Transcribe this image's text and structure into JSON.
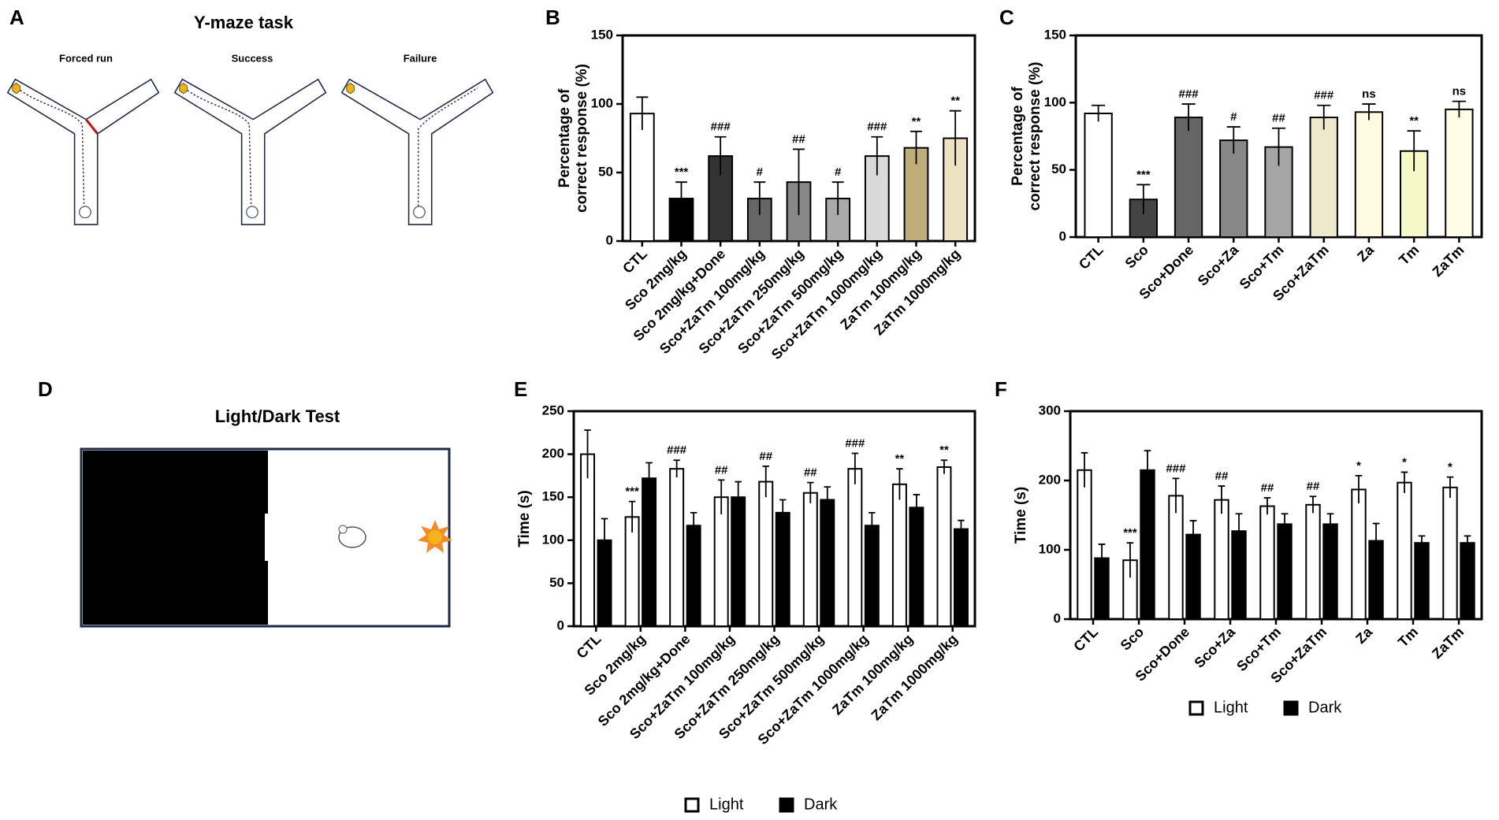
{
  "panel_a": {
    "label": "A",
    "title": "Y-maze task",
    "labels": [
      "Forced run",
      "Success",
      "Failure"
    ]
  },
  "panel_d": {
    "label": "D",
    "title": "Light/Dark Test"
  },
  "chart_data": [
    {
      "type": "bar",
      "panel": "B",
      "ylabel": "Percentage of correct response (%)",
      "categories": [
        "CTL",
        "Sco 2mg/kg",
        "Sco 2mg/kg+Done",
        "Sco+ZaTm 100mg/kg",
        "Sco+ZaTm 250mg/kg",
        "Sco+ZaTm 500mg/kg",
        "Sco+ZaTm 1000mg/kg",
        "ZaTm 100mg/kg",
        "ZaTm 1000mg/kg"
      ],
      "values": [
        93,
        31,
        62,
        31,
        43,
        31,
        62,
        68,
        75
      ],
      "errors": [
        12,
        12,
        14,
        12,
        24,
        12,
        14,
        12,
        20
      ],
      "annotations": [
        null,
        "***",
        "###",
        "#",
        "##",
        "#",
        "###",
        "**",
        "**"
      ],
      "colors": [
        "#ffffff",
        "#000000",
        "#333333",
        "#666666",
        "#888888",
        "#aaaaaa",
        "#d9d9d9",
        "#bfae7a",
        "#ede3c2"
      ],
      "ylim": [
        0,
        150
      ],
      "yticks": [
        0,
        50,
        100,
        150
      ]
    },
    {
      "type": "bar",
      "panel": "C",
      "ylabel": "Percentage of correct response (%)",
      "categories": [
        "CTL",
        "Sco",
        "Sco+Done",
        "Sco+Za",
        "Sco+Tm",
        "Sco+ZaTm",
        "Za",
        "Tm",
        "ZaTm"
      ],
      "values": [
        92,
        28,
        89,
        72,
        67,
        89,
        93,
        64,
        95
      ],
      "errors": [
        6,
        11,
        10,
        10,
        14,
        9,
        6,
        15,
        6
      ],
      "annotations": [
        null,
        "***",
        "###",
        "#",
        "##",
        "###",
        "ns",
        "**",
        "ns"
      ],
      "colors": [
        "#ffffff",
        "#444444",
        "#666666",
        "#888888",
        "#a6a6a6",
        "#eee8cc",
        "#fffbe0",
        "#f6f8c8",
        "#fffde6"
      ],
      "ylim": [
        0,
        150
      ],
      "yticks": [
        0,
        50,
        100,
        150
      ]
    },
    {
      "type": "bar",
      "panel": "E",
      "ylabel": "Time (s)",
      "categories": [
        "CTL",
        "Sco 2mg/kg",
        "Sco 2mg/kg+Done",
        "Sco+ZaTm 100mg/kg",
        "Sco+ZaTm 250mg/kg",
        "Sco+ZaTm 500mg/kg",
        "Sco+ZaTm 1000mg/kg",
        "ZaTm 100mg/kg",
        "ZaTm 1000mg/kg"
      ],
      "series": [
        {
          "name": "Light",
          "color": "#ffffff",
          "values": [
            200,
            127,
            183,
            150,
            168,
            155,
            183,
            165,
            185
          ],
          "errors": [
            28,
            18,
            10,
            20,
            18,
            12,
            18,
            18,
            8
          ],
          "annotations": [
            null,
            "***",
            "###",
            "##",
            "##",
            "##",
            "###",
            "**",
            "**"
          ]
        },
        {
          "name": "Dark",
          "color": "#000000",
          "values": [
            100,
            172,
            117,
            150,
            132,
            147,
            117,
            138,
            113
          ],
          "errors": [
            25,
            18,
            15,
            18,
            15,
            15,
            15,
            15,
            10
          ]
        }
      ],
      "ylim": [
        0,
        250
      ],
      "yticks": [
        0,
        50,
        100,
        150,
        200,
        250
      ],
      "legend": "bottom"
    },
    {
      "type": "bar",
      "panel": "F",
      "ylabel": "Time (s)",
      "categories": [
        "CTL",
        "Sco",
        "Sco+Done",
        "Sco+Za",
        "Sco+Tm",
        "Sco+ZaTm",
        "Za",
        "Tm",
        "ZaTm"
      ],
      "series": [
        {
          "name": "Light",
          "color": "#ffffff",
          "values": [
            215,
            85,
            178,
            172,
            163,
            165,
            187,
            197,
            190
          ],
          "errors": [
            25,
            25,
            25,
            20,
            12,
            12,
            20,
            15,
            15
          ],
          "annotations": [
            null,
            "***",
            "###",
            "##",
            "##",
            "##",
            "*",
            "*",
            "*"
          ]
        },
        {
          "name": "Dark",
          "color": "#000000",
          "values": [
            88,
            215,
            122,
            127,
            137,
            137,
            113,
            110,
            110
          ],
          "errors": [
            20,
            28,
            20,
            25,
            15,
            15,
            25,
            10,
            10
          ]
        }
      ],
      "ylim": [
        0,
        300
      ],
      "yticks": [
        0,
        100,
        200,
        300
      ],
      "legend": "bottom"
    }
  ]
}
